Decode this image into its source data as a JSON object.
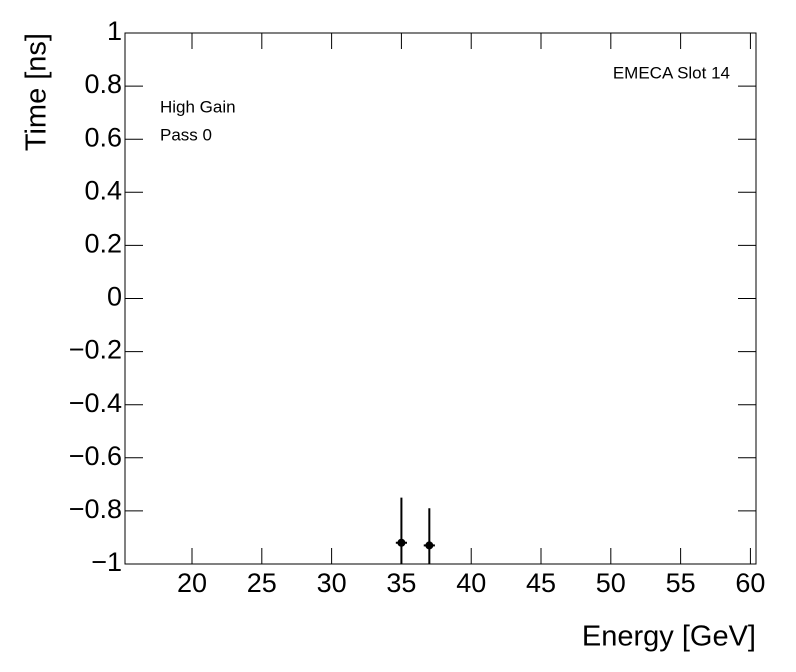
{
  "chart_data": {
    "type": "scatter",
    "x_label": "Energy [GeV]",
    "y_label": "Time [ns]",
    "annotations": [
      "EMECA Slot 14",
      "High Gain",
      "Pass 0"
    ],
    "series": [
      {
        "color": "#000000",
        "x": [
          35,
          37
        ],
        "values": [
          -0.92,
          -0.93
        ],
        "y_errors": [
          0.17,
          0.14
        ],
        "x_errors": [
          0.4,
          0.4
        ]
      }
    ],
    "xlim": [
      15.2,
      60.4
    ],
    "ylim": [
      -1,
      1
    ],
    "xticks": [
      20,
      25,
      30,
      35,
      40,
      45,
      50,
      55,
      60
    ],
    "yticks": [
      {
        "value": -1,
        "label": "−1"
      },
      {
        "value": -0.8,
        "label": "−0.8"
      },
      {
        "value": -0.6,
        "label": "−0.6"
      },
      {
        "value": -0.4,
        "label": "−0.4"
      },
      {
        "value": -0.2,
        "label": "−0.2"
      },
      0,
      0.2,
      0.4,
      0.6,
      0.8,
      1
    ],
    "grid": false
  }
}
